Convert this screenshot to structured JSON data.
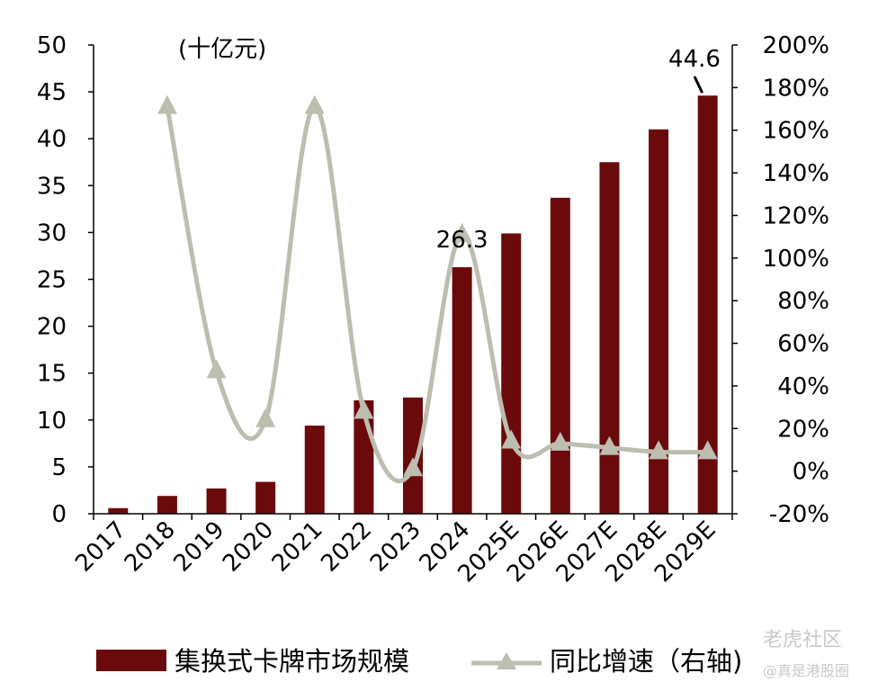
{
  "chart_data": {
    "type": "bar",
    "unit_label": "(十亿元)",
    "categories": [
      "2017",
      "2018",
      "2019",
      "2020",
      "2021",
      "2022",
      "2023",
      "2024",
      "2025E",
      "2026E",
      "2027E",
      "2028E",
      "2029E"
    ],
    "series": [
      {
        "name": "集换式卡牌市场规模",
        "type": "bar",
        "axis": "left",
        "color": "#6b0a0a",
        "values": [
          0.6,
          1.9,
          2.7,
          3.4,
          9.4,
          12.1,
          12.4,
          26.3,
          29.9,
          33.7,
          37.5,
          41.0,
          44.6
        ]
      },
      {
        "name": "同比增速（右轴)",
        "type": "line",
        "axis": "right",
        "color": "#bdbdb0",
        "marker": "triangle",
        "values": [
          null,
          1.71,
          0.47,
          0.24,
          1.71,
          0.28,
          0.01,
          1.11,
          0.14,
          0.13,
          0.11,
          0.09,
          0.09
        ]
      }
    ],
    "left_axis": {
      "min": 0,
      "max": 50,
      "step": 5,
      "ticks": [
        "0",
        "5",
        "10",
        "15",
        "20",
        "25",
        "30",
        "35",
        "40",
        "45",
        "50"
      ]
    },
    "right_axis": {
      "min": -0.2,
      "max": 2.0,
      "step": 0.2,
      "ticks": [
        "-20%",
        "0%",
        "20%",
        "40%",
        "60%",
        "80%",
        "100%",
        "120%",
        "140%",
        "160%",
        "180%",
        "200%"
      ]
    },
    "annotations": [
      {
        "category": "2024",
        "text": "26.3"
      },
      {
        "category": "2029E",
        "text": "44.6"
      }
    ],
    "grid": false,
    "legend_position": "bottom"
  },
  "watermark": {
    "line1": "老虎社区",
    "line2": "@真是港股圈"
  }
}
